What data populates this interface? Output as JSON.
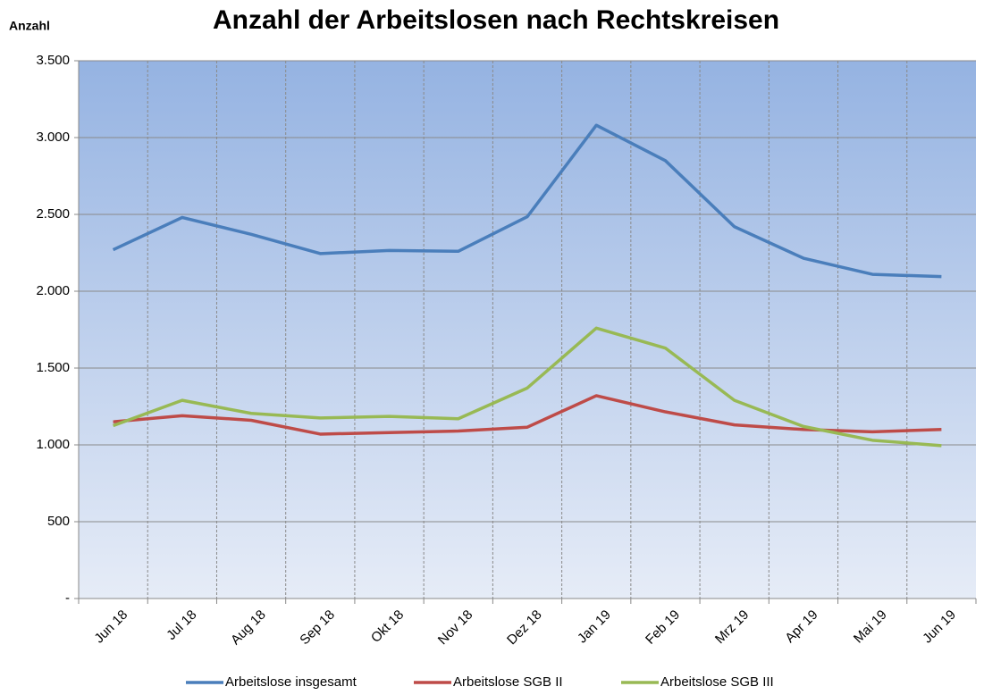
{
  "chart_data": {
    "type": "line",
    "title": "Anzahl der Arbeitslosen nach Rechtskreisen",
    "y_label": "Anzahl",
    "categories": [
      "Jun 18",
      "Jul 18",
      "Aug 18",
      "Sep 18",
      "Okt 18",
      "Nov 18",
      "Dez 18",
      "Jan 19",
      "Feb 19",
      "Mrz 19",
      "Apr 19",
      "Mai 19",
      "Jun 19"
    ],
    "series": [
      {
        "name": "Arbeitslose insgesamt",
        "color": "#4a7ebb",
        "values": [
          2270,
          2480,
          2370,
          2245,
          2265,
          2260,
          2485,
          3080,
          2850,
          2420,
          2215,
          2110,
          2095
        ]
      },
      {
        "name": "Arbeitslose SGB II",
        "color": "#be4b48",
        "values": [
          1150,
          1190,
          1160,
          1070,
          1080,
          1090,
          1115,
          1320,
          1215,
          1130,
          1100,
          1085,
          1100
        ]
      },
      {
        "name": "Arbeitslose SGB III",
        "color": "#98b954",
        "values": [
          1125,
          1290,
          1205,
          1175,
          1185,
          1170,
          1370,
          1760,
          1630,
          1290,
          1120,
          1030,
          995
        ]
      }
    ],
    "ylim": [
      0,
      3500
    ],
    "yticks": [
      {
        "value": 0,
        "label": "-"
      },
      500,
      {
        "value": 1000,
        "label": "1.000"
      },
      {
        "value": 1500,
        "label": "1.500"
      },
      {
        "value": 2000,
        "label": "2.000"
      },
      {
        "value": 2500,
        "label": "2.500"
      },
      {
        "value": 3000,
        "label": "3.000"
      },
      {
        "value": 3500,
        "label": "3.500"
      }
    ],
    "grid": true,
    "legend": "bottom"
  }
}
